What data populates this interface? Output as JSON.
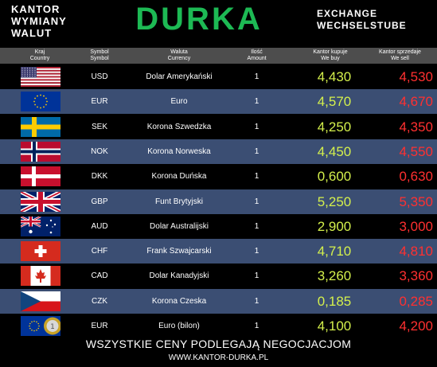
{
  "header": {
    "left_lines": [
      "KANTOR",
      "WYMIANY",
      "WALUT"
    ],
    "brand": "DURKA",
    "right_lines": [
      "EXCHANGE",
      "WECHSELSTUBE"
    ]
  },
  "table_header": {
    "country": [
      "Kraj",
      "Country"
    ],
    "symbol": [
      "Symbol",
      "Symbol"
    ],
    "currency": [
      "Waluta",
      "Currency"
    ],
    "amount": [
      "Ilość",
      "Amount"
    ],
    "buy": [
      "Kantor kupuje",
      "We buy"
    ],
    "sell": [
      "Kantor sprzedaje",
      "We sell"
    ]
  },
  "rows": [
    {
      "flag": "usa-flag",
      "symbol": "USD",
      "name": "Dolar Amerykański",
      "amount": "1",
      "buy": "4,430",
      "sell": "4,530"
    },
    {
      "flag": "eu-flag",
      "symbol": "EUR",
      "name": "Euro",
      "amount": "1",
      "buy": "4,570",
      "sell": "4,670"
    },
    {
      "flag": "sweden-flag",
      "symbol": "SEK",
      "name": "Korona Szwedzka",
      "amount": "1",
      "buy": "4,250",
      "sell": "4,350"
    },
    {
      "flag": "norway-flag",
      "symbol": "NOK",
      "name": "Korona Norweska",
      "amount": "1",
      "buy": "4,450",
      "sell": "4,550"
    },
    {
      "flag": "denmark-flag",
      "symbol": "DKK",
      "name": "Korona Duńska",
      "amount": "1",
      "buy": "0,600",
      "sell": "0,630"
    },
    {
      "flag": "uk-flag",
      "symbol": "GBP",
      "name": "Funt Brytyjski",
      "amount": "1",
      "buy": "5,250",
      "sell": "5,350"
    },
    {
      "flag": "australia-flag",
      "symbol": "AUD",
      "name": "Dolar Australijski",
      "amount": "1",
      "buy": "2,900",
      "sell": "3,000"
    },
    {
      "flag": "switzerland-flag",
      "symbol": "CHF",
      "name": "Frank Szwajcarski",
      "amount": "1",
      "buy": "4,710",
      "sell": "4,810"
    },
    {
      "flag": "canada-flag",
      "symbol": "CAD",
      "name": "Dolar Kanadyjski",
      "amount": "1",
      "buy": "3,260",
      "sell": "3,360"
    },
    {
      "flag": "czech-flag",
      "symbol": "CZK",
      "name": "Korona Czeska",
      "amount": "1",
      "buy": "0,185",
      "sell": "0,285"
    },
    {
      "flag": "eu-flag-with-coin",
      "symbol": "EUR",
      "name": "Euro (bilon)",
      "amount": "1",
      "buy": "4,100",
      "sell": "4,200"
    }
  ],
  "footer": {
    "notice": "WSZYSTKIE CENY PODLEGAJĄ NEGOCJACJOM",
    "website": "WWW.KANTOR-DURKA.PL"
  },
  "colors": {
    "brand": "#1db954",
    "buy": "#d4f04c",
    "sell": "#ff3030",
    "row_alt": "#3b4e73",
    "header_bar": "#4d4d4d"
  }
}
